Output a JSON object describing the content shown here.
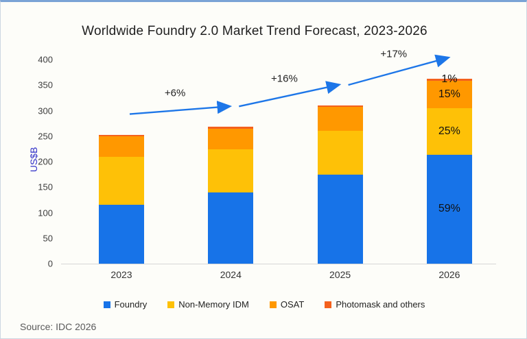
{
  "title": "Worldwide Foundry 2.0 Market Trend Forecast, 2023-2026",
  "source": "Source: IDC 2026",
  "colors": {
    "accent_arrow": "#1d76e8",
    "card_top_border": "#7aa3d6",
    "axis_line": "#d6d6d6",
    "y_axis_title": "#2e2ec8"
  },
  "chart_data": {
    "type": "bar",
    "stacked": true,
    "title": "Worldwide Foundry 2.0 Market Trend Forecast, 2023-2026",
    "categories": [
      "2023",
      "2024",
      "2025",
      "2026"
    ],
    "series": [
      {
        "name": "Foundry",
        "color": "#1773e8",
        "values": [
          116,
          139,
          174,
          214
        ]
      },
      {
        "name": "Non-Memory IDM",
        "color": "#fec107",
        "values": [
          94,
          85,
          87,
          91
        ]
      },
      {
        "name": "OSAT",
        "color": "#ff9800",
        "values": [
          40,
          41,
          46,
          54
        ]
      },
      {
        "name": "Photomask and others",
        "color": "#f4611d",
        "values": [
          3,
          3,
          3,
          4
        ]
      }
    ],
    "totals": [
      253,
      268,
      310,
      363
    ],
    "ylabel": "US$B",
    "xlabel": "",
    "ylim": [
      0,
      400
    ],
    "yticks": [
      0,
      50,
      100,
      150,
      200,
      250,
      300,
      350,
      400
    ],
    "grid": false,
    "legend_position": "bottom",
    "growth_annotations": [
      {
        "label": "+6%",
        "from": "2023",
        "to": "2024"
      },
      {
        "label": "+16%",
        "from": "2024",
        "to": "2025"
      },
      {
        "label": "+17%",
        "from": "2025",
        "to": "2026"
      }
    ],
    "segment_labels_year": "2026",
    "segment_labels": [
      "59%",
      "25%",
      "15%",
      "1%"
    ]
  }
}
